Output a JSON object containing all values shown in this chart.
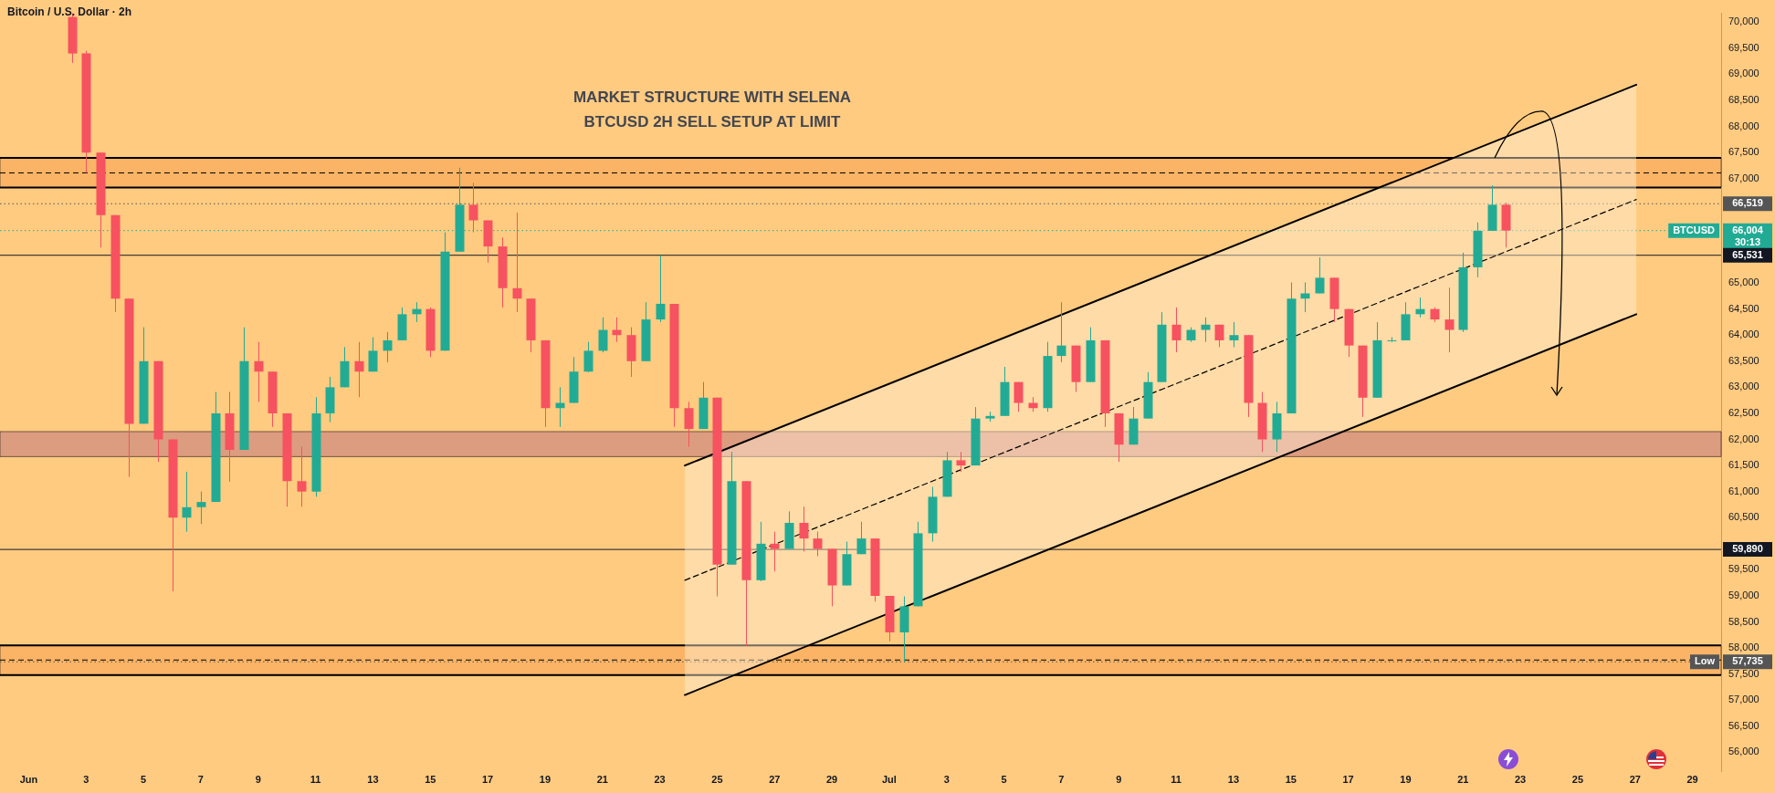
{
  "chart_data": {
    "type": "candlestick",
    "title": "Bitcoin / U.S. Dollar · 2h",
    "subtitle": "MARKET STRUCTURE WITH SELENA\nBTCUSD 2H SELL SETUP AT LIMIT",
    "marker": "none",
    "xlim": [
      "--05-31T00:00",
      "--07-30T00:00"
    ],
    "xticks": [
      {
        "value": "--06-01",
        "label": "Jun"
      },
      {
        "value": "--06-03",
        "label": "3"
      },
      {
        "value": "--06-05",
        "label": "5"
      },
      {
        "value": "--06-07",
        "label": "7"
      },
      {
        "value": "--06-09",
        "label": "9"
      },
      {
        "value": "--06-11",
        "label": "11"
      },
      {
        "value": "--06-13",
        "label": "13"
      },
      {
        "value": "--06-15",
        "label": "15"
      },
      {
        "value": "--06-17",
        "label": "17"
      },
      {
        "value": "--06-19",
        "label": "19"
      },
      {
        "value": "--06-21",
        "label": "21"
      },
      {
        "value": "--06-23",
        "label": "23"
      },
      {
        "value": "--06-25",
        "label": "25"
      },
      {
        "value": "--06-27",
        "label": "27"
      },
      {
        "value": "--06-29",
        "label": "29"
      },
      {
        "value": "--07-01",
        "label": "Jul"
      },
      {
        "value": "--07-03",
        "label": "3"
      },
      {
        "value": "--07-05",
        "label": "5"
      },
      {
        "value": "--07-07",
        "label": "7"
      },
      {
        "value": "--07-09",
        "label": "9"
      },
      {
        "value": "--07-11",
        "label": "11"
      },
      {
        "value": "--07-13",
        "label": "13"
      },
      {
        "value": "--07-15",
        "label": "15"
      },
      {
        "value": "--07-17",
        "label": "17"
      },
      {
        "value": "--07-19",
        "label": "19"
      },
      {
        "value": "--07-21",
        "label": "21"
      },
      {
        "value": "--07-23",
        "label": "23"
      },
      {
        "value": "--07-25",
        "label": "25"
      },
      {
        "value": "--07-27",
        "label": "27"
      },
      {
        "value": "--07-29",
        "label": "29"
      }
    ],
    "ylim": [
      55640,
      70170
    ],
    "yticks": [
      {
        "value": 56000,
        "label": "56,000"
      },
      {
        "value": 56500,
        "label": "56,500"
      },
      {
        "value": 57000,
        "label": "57,000"
      },
      {
        "value": 57500,
        "label": "57,500"
      },
      {
        "value": 58000,
        "label": "58,000"
      },
      {
        "value": 58500,
        "label": "58,500"
      },
      {
        "value": 59000,
        "label": "59,000"
      },
      {
        "value": 59500,
        "label": "59,500"
      },
      {
        "value": 60500,
        "label": "60,500"
      },
      {
        "value": 61000,
        "label": "61,000"
      },
      {
        "value": 61500,
        "label": "61,500"
      },
      {
        "value": 62000,
        "label": "62,000"
      },
      {
        "value": 62500,
        "label": "62,500"
      },
      {
        "value": 63000,
        "label": "63,000"
      },
      {
        "value": 63500,
        "label": "63,500"
      },
      {
        "value": 64000,
        "label": "64,000"
      },
      {
        "value": 64500,
        "label": "64,500"
      },
      {
        "value": 65000,
        "label": "65,000"
      },
      {
        "value": 67000,
        "label": "67,000"
      },
      {
        "value": 67500,
        "label": "67,500"
      },
      {
        "value": 68000,
        "label": "68,000"
      },
      {
        "value": 68500,
        "label": "68,500"
      },
      {
        "value": 69000,
        "label": "69,000"
      },
      {
        "value": 69500,
        "label": "69,500"
      },
      {
        "value": 70000,
        "label": "70,000"
      }
    ],
    "bands": [
      {
        "axis": "y",
        "from": 66830,
        "to": 67400,
        "color": "#fbb466"
      },
      {
        "axis": "y",
        "from": 57480,
        "to": 58050,
        "color": "#fbb466"
      },
      {
        "axis": "y",
        "from": 61670,
        "to": 62150,
        "color": "#dc9c80"
      }
    ],
    "ref_lines": [
      {
        "axis": "y",
        "value": 67400,
        "color": "#000000",
        "line_style": "solid"
      },
      {
        "axis": "y",
        "value": 66830,
        "color": "#000000",
        "line_style": "solid"
      },
      {
        "axis": "y",
        "value": 67110,
        "color": "#000000",
        "line_style": "dashed"
      },
      {
        "axis": "y",
        "value": 66519,
        "label": "66,519",
        "color": "#555555",
        "line_style": "dotted"
      },
      {
        "axis": "y",
        "value": 66004,
        "label": "66,004\n30:13",
        "color": "#22ab94",
        "line_style": "dotted"
      },
      {
        "axis": "y",
        "value": 65531,
        "label": "65,531",
        "color": "#131722",
        "line_style": "solid"
      },
      {
        "axis": "y",
        "value": 59890,
        "label": "59,890",
        "color": "#131722",
        "line_style": "solid"
      },
      {
        "axis": "y",
        "value": 58050,
        "color": "#000000",
        "line_style": "solid"
      },
      {
        "axis": "y",
        "value": 57480,
        "color": "#000000",
        "line_style": "solid"
      },
      {
        "axis": "y",
        "value": 57770,
        "color": "#000000",
        "line_style": "dashed"
      },
      {
        "axis": "y",
        "value": 57735,
        "label": "57,735",
        "color": "#555555",
        "line_style": "dotted"
      }
    ],
    "annotations": [
      {
        "text": "BTCUSD",
        "y": 66004
      },
      {
        "text": "Low",
        "y": 57735
      }
    ],
    "series": [
      {
        "type": "line",
        "color": "#000000",
        "line_style": "dashed",
        "x": [
          "--06-23T21:00",
          "--07-27T01:00"
        ],
        "values": [
          59300,
          66600
        ],
        "lower": [
          57100,
          64400
        ],
        "upper": [
          61500,
          68800
        ]
      },
      {
        "type": "line",
        "color": "#000000",
        "line_style": "solid",
        "x": [
          "--06-23T21:00",
          "--07-27T01:00"
        ],
        "values": [
          61500,
          68800
        ]
      },
      {
        "type": "line",
        "color": "#000000",
        "line_style": "solid",
        "x": [
          "--06-23T21:00",
          "--07-27T01:00"
        ],
        "values": [
          57100,
          64400
        ]
      },
      {
        "color": "#22ab94",
        "x": [
          "--06-05T00:00",
          "--06-06T12:00",
          "--06-07T00:00",
          "--06-07T12:00",
          "--06-08T12:00",
          "--06-11T00:00",
          "--06-11T12:00",
          "--06-12T00:00",
          "--06-13T00:00",
          "--06-13T12:00",
          "--06-14T00:00",
          "--06-14T12:00",
          "--06-15T12:00",
          "--06-16T00:00",
          "--06-19T12:00",
          "--06-20T00:00",
          "--06-20T12:00",
          "--06-21T00:00",
          "--06-22T12:00",
          "--06-23T00:00",
          "--06-24T12:00",
          "--06-25T12:00",
          "--06-26T12:00",
          "--06-27T12:00",
          "--06-29T12:00",
          "--06-30T00:00",
          "--07-01T12:00",
          "--07-02T00:00",
          "--07-02T12:00",
          "--07-03T00:00",
          "--07-04T00:00",
          "--07-04T12:00",
          "--07-05T00:00",
          "--07-06T12:00",
          "--07-07T00:00",
          "--07-08T00:00",
          "--07-09T12:00",
          "--07-10T00:00",
          "--07-10T12:00",
          "--07-11T12:00",
          "--07-12T00:00",
          "--07-13T00:00",
          "--07-14T12:00",
          "--07-15T00:00",
          "--07-15T12:00",
          "--07-16T00:00",
          "--07-18T00:00",
          "--07-18T12:00",
          "--07-19T00:00",
          "--07-19T12:00",
          "--07-21T00:00",
          "--07-21T12:00",
          "--07-22T00:00"
        ],
        "ohlc": [
          [
            62300,
            64150,
            62300,
            63500
          ],
          [
            60500,
            61380,
            60230,
            60700
          ],
          [
            60700,
            61000,
            60380,
            60800
          ],
          [
            60800,
            62910,
            60800,
            62500
          ],
          [
            61800,
            64150,
            61800,
            63500
          ],
          [
            61000,
            62810,
            60900,
            62500
          ],
          [
            62500,
            63200,
            62330,
            63000
          ],
          [
            63000,
            63770,
            63000,
            63500
          ],
          [
            63300,
            63960,
            63300,
            63700
          ],
          [
            63700,
            64060,
            63480,
            63900
          ],
          [
            63900,
            64530,
            63900,
            64400
          ],
          [
            64400,
            64630,
            64250,
            64500
          ],
          [
            63700,
            65970,
            63700,
            65600
          ],
          [
            65600,
            67210,
            65600,
            66500
          ],
          [
            62600,
            63000,
            62240,
            62700
          ],
          [
            62700,
            63580,
            62700,
            63300
          ],
          [
            63300,
            63870,
            63290,
            63700
          ],
          [
            63700,
            64340,
            63670,
            64100
          ],
          [
            63500,
            64630,
            63500,
            64300
          ],
          [
            64300,
            65530,
            64250,
            64600
          ],
          [
            62200,
            63100,
            62200,
            62800
          ],
          [
            59600,
            61760,
            59600,
            61200
          ],
          [
            59300,
            60420,
            59280,
            60000
          ],
          [
            59900,
            60620,
            59900,
            60400
          ],
          [
            59200,
            60040,
            59200,
            59800
          ],
          [
            59800,
            60420,
            59800,
            60100
          ],
          [
            58300,
            58990,
            57735,
            58800
          ],
          [
            58800,
            60420,
            58800,
            60200
          ],
          [
            60200,
            61090,
            60040,
            60900
          ],
          [
            60900,
            61760,
            60900,
            61600
          ],
          [
            61500,
            62620,
            61500,
            62400
          ],
          [
            62400,
            62530,
            62340,
            62450
          ],
          [
            62450,
            63390,
            62450,
            63100
          ],
          [
            62600,
            63870,
            62530,
            63600
          ],
          [
            63600,
            64630,
            63480,
            63800
          ],
          [
            63100,
            64150,
            63100,
            63900
          ],
          [
            61900,
            62620,
            61900,
            62400
          ],
          [
            62400,
            63290,
            62400,
            63100
          ],
          [
            63100,
            64440,
            63100,
            64200
          ],
          [
            63900,
            64150,
            63870,
            64100
          ],
          [
            64100,
            64340,
            63870,
            64200
          ],
          [
            63900,
            64250,
            63770,
            64000
          ],
          [
            62000,
            62720,
            61760,
            62500
          ],
          [
            62500,
            65010,
            62500,
            64700
          ],
          [
            64700,
            65010,
            64440,
            64800
          ],
          [
            64800,
            65490,
            64800,
            65100
          ],
          [
            62800,
            64250,
            62800,
            63900
          ],
          [
            63900,
            63960,
            63870,
            63900
          ],
          [
            63900,
            64630,
            63900,
            64400
          ],
          [
            64400,
            64720,
            64340,
            64500
          ],
          [
            64100,
            65580,
            64060,
            65300
          ],
          [
            65300,
            66160,
            65110,
            66000
          ],
          [
            66000,
            66870,
            66000,
            66500
          ]
        ]
      },
      {
        "color": "#f7525f",
        "x": [
          "--06-02T12:00",
          "--06-03T00:00",
          "--06-03T12:00",
          "--06-04T00:00",
          "--06-04T12:00",
          "--06-05T12:00",
          "--06-06T00:00",
          "--06-08T00:00",
          "--06-09T00:00",
          "--06-09T12:00",
          "--06-10T00:00",
          "--06-10T12:00",
          "--06-12T12:00",
          "--06-15T00:00",
          "--06-16T12:00",
          "--06-17T00:00",
          "--06-17T12:00",
          "--06-18T00:00",
          "--06-18T12:00",
          "--06-19T00:00",
          "--06-21T12:00",
          "--06-22T00:00",
          "--06-23T12:00",
          "--06-24T00:00",
          "--06-25T00:00",
          "--06-26T00:00",
          "--06-27T00:00",
          "--06-28T00:00",
          "--06-28T12:00",
          "--06-29T00:00",
          "--06-30T12:00",
          "--07-01T00:00",
          "--07-03T12:00",
          "--07-05T12:00",
          "--07-06T00:00",
          "--07-07T12:00",
          "--07-08T12:00",
          "--07-09T00:00",
          "--07-11T00:00",
          "--07-12T12:00",
          "--07-13T12:00",
          "--07-14T00:00",
          "--07-16T12:00",
          "--07-17T00:00",
          "--07-17T12:00",
          "--07-20T00:00",
          "--07-20T12:00",
          "--07-22T12:00"
        ],
        "ohlc": [
          [
            70100,
            70170,
            69220,
            69400
          ],
          [
            69400,
            69450,
            67110,
            67500
          ],
          [
            67500,
            67500,
            65680,
            66300
          ],
          [
            66300,
            66300,
            64440,
            64700
          ],
          [
            64700,
            64700,
            61280,
            62300
          ],
          [
            63500,
            63500,
            61570,
            62000
          ],
          [
            62000,
            62000,
            59090,
            60500
          ],
          [
            62500,
            62910,
            61190,
            61800
          ],
          [
            63500,
            63870,
            62720,
            63300
          ],
          [
            63300,
            63300,
            62240,
            62500
          ],
          [
            62500,
            62500,
            60710,
            61200
          ],
          [
            61200,
            61860,
            60710,
            61000
          ],
          [
            63500,
            63870,
            62810,
            63300
          ],
          [
            64500,
            64530,
            63580,
            63700
          ],
          [
            66500,
            66920,
            65970,
            66200
          ],
          [
            66200,
            66200,
            65390,
            65700
          ],
          [
            65700,
            65870,
            64530,
            64900
          ],
          [
            64900,
            66350,
            64440,
            64700
          ],
          [
            64700,
            64700,
            63670,
            63900
          ],
          [
            63900,
            63900,
            62240,
            62600
          ],
          [
            64100,
            64340,
            63870,
            64000
          ],
          [
            64000,
            64150,
            63200,
            63500
          ],
          [
            64600,
            64600,
            62240,
            62600
          ],
          [
            62600,
            62720,
            61860,
            62200
          ],
          [
            62800,
            62800,
            58990,
            59600
          ],
          [
            61200,
            61200,
            58040,
            59300
          ],
          [
            60000,
            60230,
            59470,
            59900
          ],
          [
            60400,
            60710,
            59850,
            60100
          ],
          [
            60100,
            60230,
            59760,
            59900
          ],
          [
            59900,
            59900,
            58800,
            59200
          ],
          [
            60100,
            60100,
            58890,
            59000
          ],
          [
            59000,
            59000,
            58130,
            58300
          ],
          [
            61600,
            61760,
            61380,
            61500
          ],
          [
            63100,
            63100,
            62530,
            62700
          ],
          [
            62700,
            62810,
            62530,
            62600
          ],
          [
            63800,
            63800,
            62910,
            63100
          ],
          [
            63900,
            63900,
            62240,
            62500
          ],
          [
            62500,
            62500,
            61570,
            61900
          ],
          [
            64200,
            64530,
            63670,
            63900
          ],
          [
            64200,
            64200,
            63770,
            63900
          ],
          [
            64000,
            64000,
            62430,
            62700
          ],
          [
            62700,
            62910,
            61760,
            62000
          ],
          [
            65100,
            65100,
            64250,
            64500
          ],
          [
            64500,
            64500,
            63580,
            63800
          ],
          [
            63800,
            63800,
            62430,
            62800
          ],
          [
            64500,
            64530,
            64250,
            64300
          ],
          [
            64300,
            64910,
            63670,
            64100
          ],
          [
            66500,
            66540,
            65680,
            66004
          ]
        ]
      }
    ]
  }
}
